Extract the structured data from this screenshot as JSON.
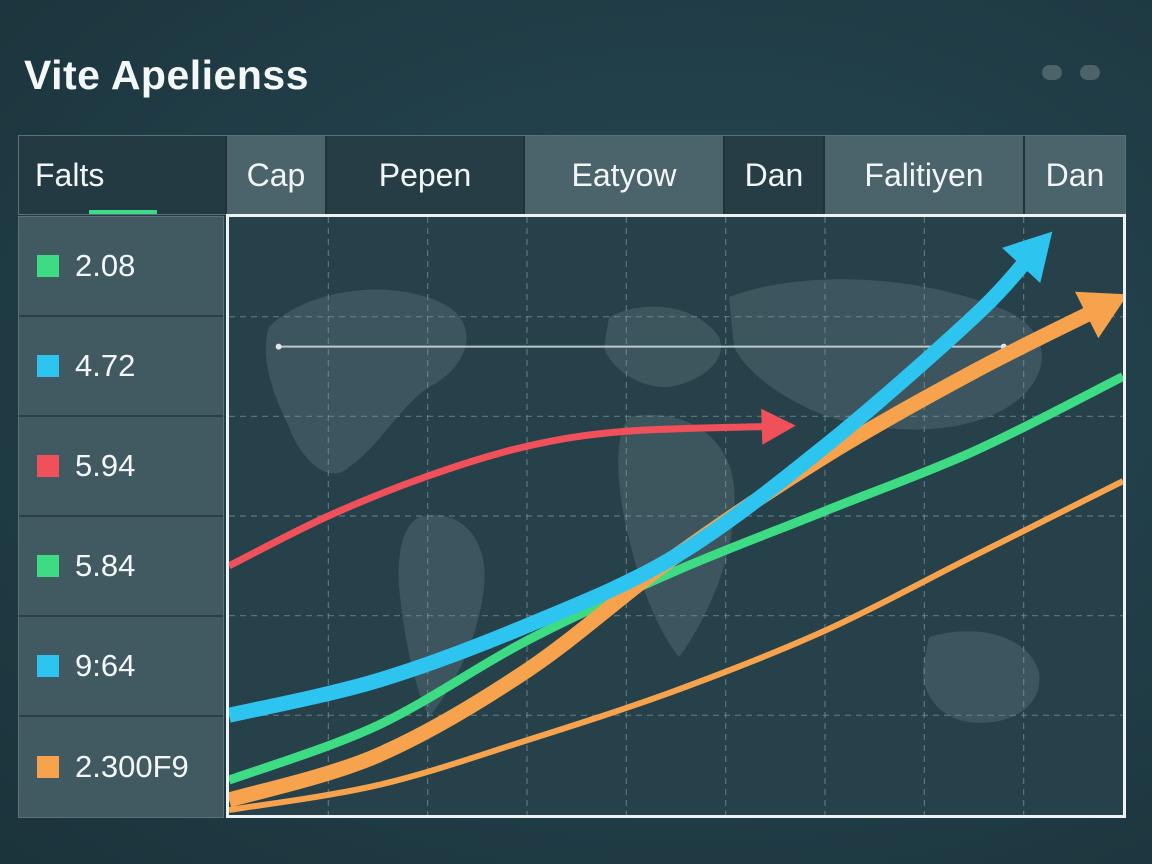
{
  "app": {
    "title": "Vite Apelienss"
  },
  "tabs": [
    {
      "label": "Falts"
    },
    {
      "label": "Cap"
    },
    {
      "label": "Pepen"
    },
    {
      "label": "Eatyow"
    },
    {
      "label": "Dan"
    },
    {
      "label": "Falitiyen"
    },
    {
      "label": "Dan"
    }
  ],
  "legend": [
    {
      "value": "2.08",
      "color": "#3ddc84"
    },
    {
      "value": "4.72",
      "color": "#2ec4f0"
    },
    {
      "value": "5.94",
      "color": "#f0505a"
    },
    {
      "value": "5.84",
      "color": "#3ddc84"
    },
    {
      "value": "9:64",
      "color": "#2ec4f0"
    },
    {
      "value": "2.300F9",
      "color": "#f7a24c"
    }
  ],
  "chart_data": {
    "type": "line",
    "xlim": [
      0,
      9
    ],
    "ylim": [
      0,
      6
    ],
    "grid": true,
    "background": "world-map",
    "series": [
      {
        "color": "#f0505a",
        "style": "arrow",
        "x": [
          0,
          1,
          2,
          3,
          4,
          5.5
        ],
        "y": [
          2.5,
          3.0,
          3.4,
          3.7,
          3.85,
          3.9
        ]
      },
      {
        "color": "#2ec4f0",
        "style": "arrow",
        "x": [
          0,
          1.5,
          3,
          4.5,
          6,
          7.5,
          8.1
        ],
        "y": [
          1.0,
          1.35,
          1.9,
          2.6,
          3.7,
          5.0,
          5.65
        ]
      },
      {
        "color": "#f7a24c",
        "style": "arrow",
        "x": [
          0,
          1.5,
          3,
          4.5,
          6,
          7.5,
          8.8
        ],
        "y": [
          0.15,
          0.6,
          1.45,
          2.6,
          3.6,
          4.45,
          5.1
        ]
      },
      {
        "color": "#3ddc84",
        "style": "line",
        "x": [
          0,
          1.5,
          3,
          4.5,
          6,
          7.5,
          9.0
        ],
        "y": [
          0.35,
          0.9,
          1.75,
          2.45,
          3.05,
          3.65,
          4.4
        ]
      },
      {
        "color": "#f7a24c",
        "style": "thin",
        "x": [
          0,
          1.5,
          3,
          4.5,
          6,
          7.5,
          9.0
        ],
        "y": [
          0.05,
          0.3,
          0.75,
          1.25,
          1.85,
          2.6,
          3.35
        ]
      }
    ],
    "reference_lines": [
      {
        "y": 4.7,
        "x1": 0.5,
        "x2": 7.8,
        "color": "#dfe7ea"
      }
    ]
  }
}
